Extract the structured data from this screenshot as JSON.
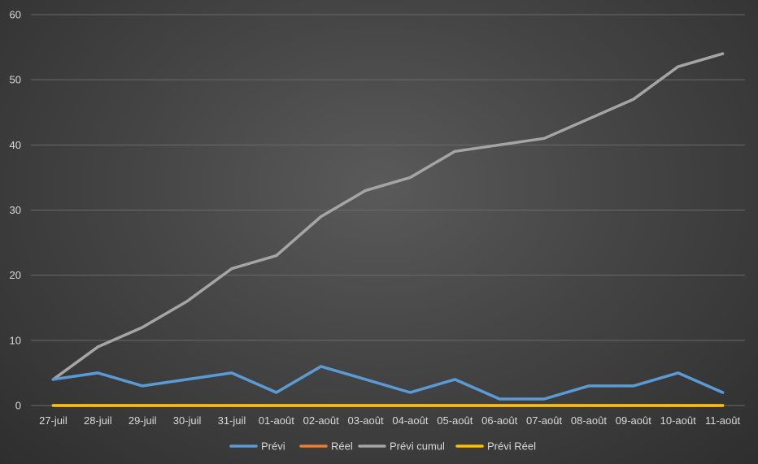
{
  "chart_data": {
    "type": "line",
    "categories": [
      "27-juil",
      "28-juil",
      "29-juil",
      "30-juil",
      "31-juil",
      "01-août",
      "02-août",
      "03-août",
      "04-août",
      "05-août",
      "06-août",
      "07-août",
      "08-août",
      "09-août",
      "10-août",
      "11-août"
    ],
    "ylim": [
      0,
      60
    ],
    "yticks": [
      0,
      10,
      20,
      30,
      40,
      50,
      60
    ],
    "grid": true,
    "legend_position": "bottom",
    "series": [
      {
        "name": "Prévi",
        "color": "#5b9bd5",
        "values": [
          4,
          5,
          3,
          4,
          5,
          2,
          6,
          4,
          2,
          4,
          1,
          1,
          3,
          3,
          5,
          2
        ]
      },
      {
        "name": "Réel",
        "color": "#ed7d31",
        "values": [
          0,
          0,
          0,
          0,
          0,
          0,
          0,
          0,
          0,
          0,
          0,
          0,
          0,
          0,
          0,
          0
        ]
      },
      {
        "name": "Prévi cumul",
        "color": "#a5a5a5",
        "values": [
          4,
          9,
          12,
          16,
          21,
          23,
          29,
          33,
          35,
          39,
          40,
          41,
          44,
          47,
          52,
          54
        ]
      },
      {
        "name": "Prévi Réel",
        "color": "#ffc000",
        "values": [
          0,
          0,
          0,
          0,
          0,
          0,
          0,
          0,
          0,
          0,
          0,
          0,
          0,
          0,
          0,
          0
        ]
      }
    ]
  }
}
